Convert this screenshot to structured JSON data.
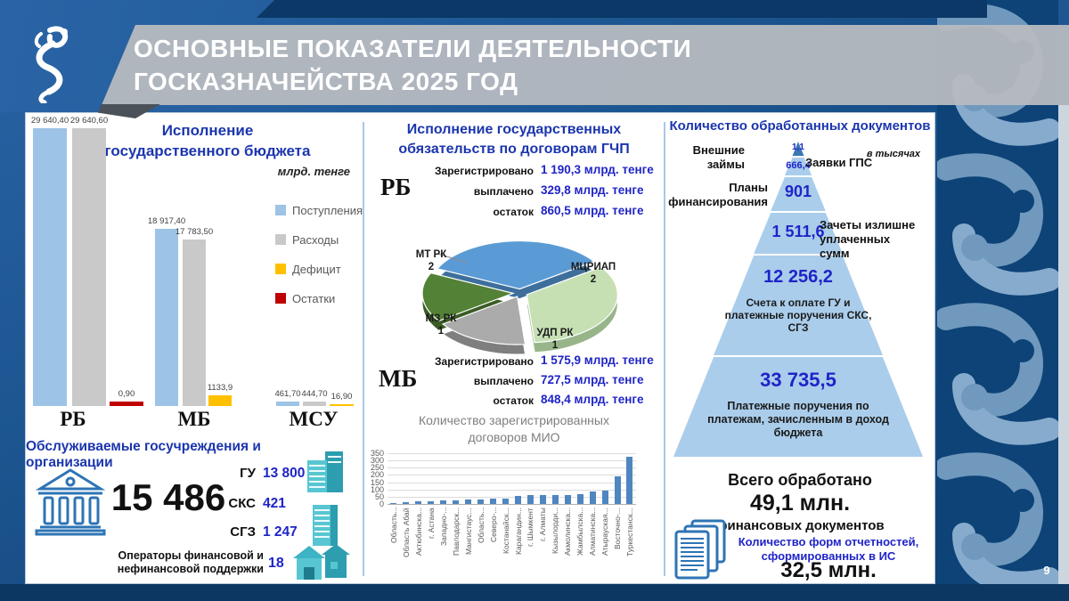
{
  "slide": {
    "title_line1": "ОСНОВНЫЕ ПОКАЗАТЕЛИ ДЕЯТЕЛЬНОСТИ",
    "title_line2": "ГОСКАЗНАЧЕЙСТВА 2025 ГОД",
    "page_number": "9"
  },
  "colors": {
    "heading_blue": "#1c36ae",
    "value_blue": "#1f24c7",
    "mio_bar": "#4f86c0",
    "pyramid_tier": "#aacdeb",
    "pyramid_apex": "#3a78b5"
  },
  "chart_data": [
    {
      "id": "budget-execution",
      "type": "bar",
      "title_lines": [
        "Исполнение",
        "государственного бюджета"
      ],
      "units": "млрд. тенге",
      "categories": [
        "РБ",
        "МБ",
        "МСУ"
      ],
      "series": [
        {
          "name": "Поступления",
          "color": "#9dc3e6",
          "values": [
            29640.4,
            18917.4,
            461.7
          ],
          "labels": [
            "29 640,40",
            "18 917,40",
            "461,70"
          ]
        },
        {
          "name": "Расходы",
          "color": "#c9c9c9",
          "values": [
            29640.6,
            17783.5,
            444.7
          ],
          "labels": [
            "29 640,60",
            "17 783,50",
            "444,70"
          ]
        },
        {
          "name": "Дефицит",
          "color": "#ffc000",
          "values": [
            null,
            1133.9,
            16.9
          ],
          "labels": [
            null,
            "1133,9",
            "16,90"
          ]
        },
        {
          "name": "Остатки",
          "color": "#c00000",
          "values": [
            0.9,
            null,
            null
          ],
          "labels": [
            "0,90",
            null,
            null
          ]
        }
      ],
      "ylim": [
        0,
        29641
      ],
      "legend_position": "right"
    },
    {
      "id": "gchp-pie",
      "type": "pie",
      "labels": [
        "МТ РК",
        "МЦРИАП",
        "УДП РК",
        "МЗ РК"
      ],
      "values": [
        2,
        2,
        1,
        1
      ],
      "colors": [
        "#5b9bd5",
        "#c6e0b4",
        "#ababab",
        "#538135"
      ],
      "side_colors": [
        "#3e6f9c",
        "#98b58a",
        "#7f7f7f",
        "#3a5c25"
      ],
      "start_angle": 155
    },
    {
      "id": "mio-contracts",
      "type": "bar",
      "title_lines": [
        "Количество зарегистрированных",
        "договоров МИО"
      ],
      "categories": [
        "Область...",
        "Область Абай",
        "Актюбинска...",
        "г. Астана",
        "Западно-...",
        "Павлодарск...",
        "Мангистаус...",
        "Область...",
        "Северо-...",
        "Костанайск...",
        "Карагандин...",
        "г. Шымкент",
        "г. Алматы",
        "Кызылорди...",
        "Акмолинска...",
        "Жамбылска...",
        "Алматинска...",
        "Атырауская...",
        "Восточно-...",
        "Туркестанск..."
      ],
      "values": [
        2,
        15,
        18,
        18,
        25,
        25,
        28,
        28,
        38,
        40,
        58,
        60,
        63,
        63,
        64,
        68,
        85,
        93,
        190,
        325
      ],
      "ylim": [
        0,
        350
      ],
      "ytick_step": 50,
      "grid": true
    },
    {
      "id": "processed-docs-pyramid",
      "type": "pyramid",
      "title": "Количество обработанных документов",
      "units": "в тысячах",
      "tiers": [
        {
          "value": "1,1",
          "label": "Внешние займы",
          "label_side": "left"
        },
        {
          "value": "666,4",
          "label": "Заявки ГПС",
          "label_side": "right"
        },
        {
          "value": "901",
          "label": "Планы финансирования",
          "label_side": "left"
        },
        {
          "value": "1 511,6",
          "label": "Зачеты излишне уплаченных сумм",
          "label_side": "right"
        },
        {
          "value": "12 256,2",
          "label": "Счета к оплате ГУ и платежные поручения СКС, СГЗ",
          "label_side": "inside"
        },
        {
          "value": "33 735,5",
          "label": "Платежные поручения по платежам, зачисленным в доход бюджета",
          "label_side": "inside"
        }
      ]
    }
  ],
  "gchp": {
    "title_lines": [
      "Исполнение государственных",
      "обязательств по договорам ГЧП"
    ],
    "rb": {
      "label": "РБ",
      "rows": [
        {
          "k": "Зарегистрировано",
          "v": "1 190,3 млрд. тенге"
        },
        {
          "k": "выплачено",
          "v": "329,8 млрд. тенге"
        },
        {
          "k": "остаток",
          "v": "860,5 млрд. тенге"
        }
      ]
    },
    "mb": {
      "label": "МБ",
      "rows": [
        {
          "k": "Зарегистрировано",
          "v": "1 575,9 млрд. тенге"
        },
        {
          "k": "выплачено",
          "v": "727,5 млрд. тенге"
        },
        {
          "k": "остаток",
          "v": "848,4 млрд. тенге"
        }
      ]
    }
  },
  "served": {
    "heading": "Обслуживаемые госучреждения и организации",
    "total": "15 486",
    "items": [
      {
        "label": "ГУ",
        "value": "13 800"
      },
      {
        "label": "СКС",
        "value": "421"
      },
      {
        "label": "СГЗ",
        "value": "1 247"
      }
    ],
    "operators_label_lines": [
      "Операторы финансовой и",
      "нефинансовой поддержки"
    ],
    "operators_value": "18"
  },
  "totals": {
    "processed_label": "Всего обработано",
    "processed_value": "49,1 млн.",
    "processed_sub": "финансовых документов",
    "forms_label": "Количество форм отчетностей, сформированных в ИС",
    "forms_value": "32,5 млн."
  }
}
